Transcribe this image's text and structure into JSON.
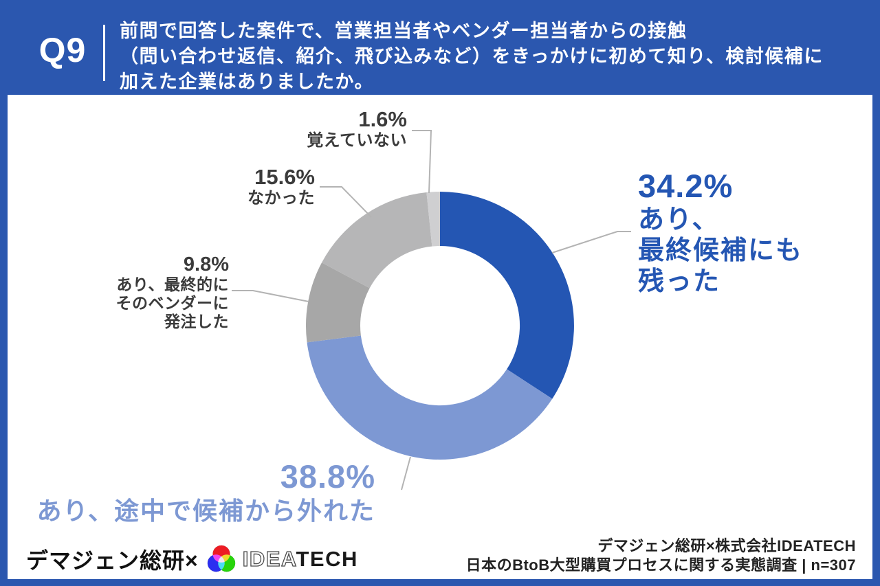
{
  "header": {
    "question_number": "Q9",
    "question_lines": [
      "前問で回答した案件で、営業担当者やベンダー担当者からの接触",
      "（問い合わせ返信、紹介、飛び込みなど）をきっかけに初めて知り、検討候補に",
      "加えた企業はありましたか。"
    ]
  },
  "chart_data": {
    "type": "pie",
    "donut": true,
    "start_angle_deg": 0,
    "direction": "clockwise",
    "unit": "%",
    "segments": [
      {
        "label": "あり、最終候補にも残った",
        "value": 34.2,
        "color": "#2456B3"
      },
      {
        "label": "あり、途中で候補から外れた",
        "value": 38.8,
        "color": "#7D98D3"
      },
      {
        "label": "あり、最終的にそのベンダーに発注した",
        "value": 9.8,
        "color": "#A7A7A7"
      },
      {
        "label": "なかった",
        "value": 15.6,
        "color": "#B6B6B7"
      },
      {
        "label": "覚えていない",
        "value": 1.6,
        "color": "#CFCFD1"
      }
    ]
  },
  "callouts": [
    {
      "pct": "34.2%",
      "lines": [
        "あり、",
        "最終候補にも",
        "残った"
      ]
    },
    {
      "pct": "38.8%",
      "lines": [
        "あり、途中で候補から外れた"
      ]
    },
    {
      "pct": "9.8%",
      "lines": [
        "あり、最終的に",
        "そのベンダーに",
        "発注した"
      ]
    },
    {
      "pct": "15.6%",
      "lines": [
        "なかった"
      ]
    },
    {
      "pct": "1.6%",
      "lines": [
        "覚えていない"
      ]
    }
  ],
  "footer": {
    "brand_left": "デマジェン総研×",
    "logo_idea": "IDEA",
    "logo_tech": "TECH",
    "credit_line1": "デマジェン総研×株式会社IDEATECH",
    "credit_line2": "日本のBtoB大型購買プロセスに関する実態調査 | n=307"
  },
  "colors": {
    "background_blue": "#2B57AF",
    "accent_blue": "#2456B3",
    "accent_light_blue": "#7D98D3",
    "leader_line": "#B3B3B3",
    "label_gray": "#3B3B3B"
  }
}
